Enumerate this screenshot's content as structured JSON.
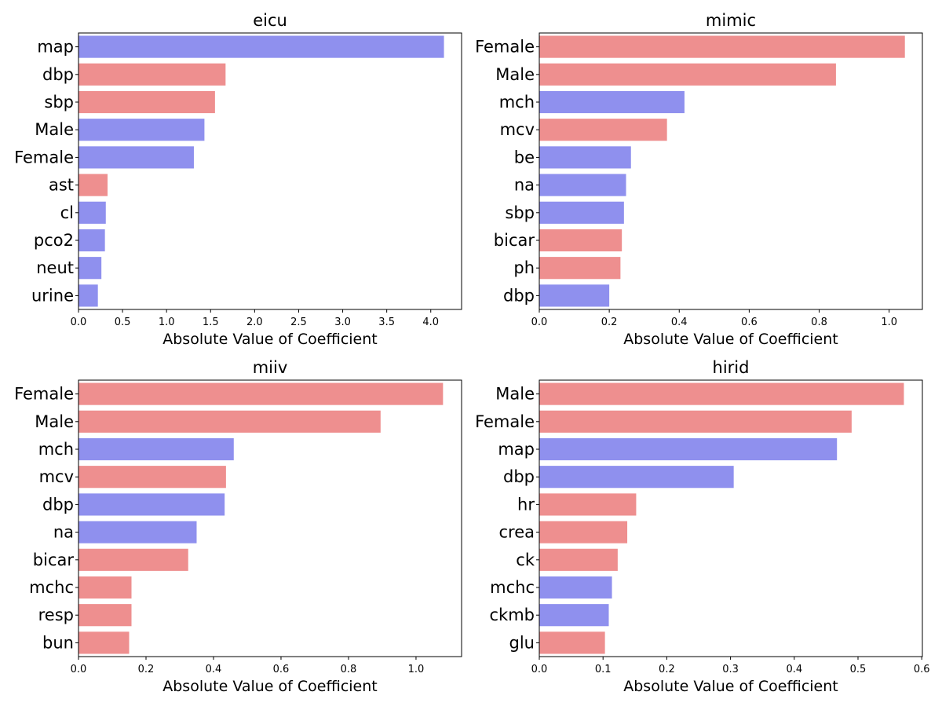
{
  "colors": {
    "red": "#ee8f8f",
    "blue": "#8f90ee",
    "axis": "#000000"
  },
  "chart_data": [
    {
      "type": "bar",
      "orientation": "horizontal",
      "title": "eicu",
      "xlabel": "Absolute Value of Coefficient",
      "ylabel": "",
      "xlim": [
        0,
        4.35
      ],
      "xticks": [
        "0.0",
        "0.5",
        "1.0",
        "1.5",
        "2.0",
        "2.5",
        "3.0",
        "3.5",
        "4.0"
      ],
      "tick_values": [
        0,
        0.5,
        1.0,
        1.5,
        2.0,
        2.5,
        3.0,
        3.5,
        4.0
      ],
      "grid": false,
      "categories": [
        "map",
        "dbp",
        "sbp",
        "Male",
        "Female",
        "ast",
        "cl",
        "pco2",
        "neut",
        "urine"
      ],
      "values": [
        4.15,
        1.67,
        1.55,
        1.43,
        1.31,
        0.33,
        0.31,
        0.3,
        0.26,
        0.22
      ],
      "colors": [
        "blue",
        "red",
        "red",
        "blue",
        "blue",
        "red",
        "blue",
        "blue",
        "blue",
        "blue"
      ]
    },
    {
      "type": "bar",
      "orientation": "horizontal",
      "title": "mimic",
      "xlabel": "Absolute Value of Coefficient",
      "ylabel": "",
      "xlim": [
        0,
        1.095
      ],
      "xticks": [
        "0.0",
        "0.2",
        "0.4",
        "0.6",
        "0.8",
        "1.0"
      ],
      "tick_values": [
        0,
        0.2,
        0.4,
        0.6,
        0.8,
        1.0
      ],
      "grid": false,
      "categories": [
        "Female",
        "Male",
        "mch",
        "mcv",
        "be",
        "na",
        "sbp",
        "bicar",
        "ph",
        "dbp"
      ],
      "values": [
        1.045,
        0.848,
        0.415,
        0.365,
        0.262,
        0.248,
        0.242,
        0.236,
        0.232,
        0.2
      ],
      "colors": [
        "red",
        "red",
        "blue",
        "red",
        "blue",
        "blue",
        "blue",
        "red",
        "red",
        "blue"
      ]
    },
    {
      "type": "bar",
      "orientation": "horizontal",
      "title": "miiv",
      "xlabel": "Absolute Value of Coefficient",
      "ylabel": "",
      "xlim": [
        0,
        1.135
      ],
      "xticks": [
        "0.0",
        "0.2",
        "0.4",
        "0.6",
        "0.8",
        "1.0"
      ],
      "tick_values": [
        0,
        0.2,
        0.4,
        0.6,
        0.8,
        1.0
      ],
      "grid": false,
      "categories": [
        "Female",
        "Male",
        "mch",
        "mcv",
        "dbp",
        "na",
        "bicar",
        "mchc",
        "resp",
        "bun"
      ],
      "values": [
        1.08,
        0.895,
        0.46,
        0.437,
        0.433,
        0.35,
        0.325,
        0.157,
        0.157,
        0.15
      ],
      "colors": [
        "red",
        "red",
        "blue",
        "red",
        "blue",
        "blue",
        "red",
        "red",
        "red",
        "red"
      ]
    },
    {
      "type": "bar",
      "orientation": "horizontal",
      "title": "hirid",
      "xlabel": "Absolute Value of Coefficient",
      "ylabel": "",
      "xlim": [
        0,
        0.601
      ],
      "xticks": [
        "0.0",
        "0.1",
        "0.2",
        "0.3",
        "0.4",
        "0.5",
        "0.6"
      ],
      "tick_values": [
        0,
        0.1,
        0.2,
        0.3,
        0.4,
        0.5,
        0.6
      ],
      "grid": false,
      "categories": [
        "Male",
        "Female",
        "map",
        "dbp",
        "hr",
        "crea",
        "ck",
        "mchc",
        "ckmb",
        "glu"
      ],
      "values": [
        0.572,
        0.49,
        0.467,
        0.305,
        0.152,
        0.138,
        0.123,
        0.114,
        0.109,
        0.103
      ],
      "colors": [
        "red",
        "red",
        "blue",
        "blue",
        "red",
        "red",
        "red",
        "blue",
        "blue",
        "red"
      ]
    }
  ]
}
